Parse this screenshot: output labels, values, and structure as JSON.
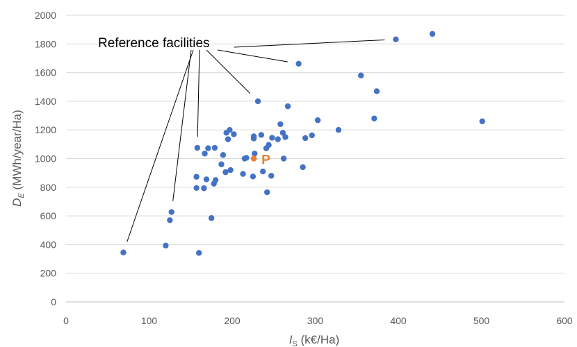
{
  "chart_data": {
    "type": "scatter",
    "title": "",
    "xlabel": {
      "main": "I",
      "sub": "S",
      "rest": " (k€/Ha)"
    },
    "ylabel": {
      "main": "D",
      "sub": "E",
      "rest": " (MWh/year/Ha)"
    },
    "xlim": [
      0,
      600
    ],
    "ylim": [
      0,
      2000
    ],
    "xticks": [
      0,
      100,
      200,
      300,
      400,
      500,
      600
    ],
    "yticks": [
      0,
      200,
      400,
      600,
      800,
      1000,
      1200,
      1400,
      1600,
      1800,
      2000
    ],
    "grid": {
      "horizontal": true,
      "vertical": false
    },
    "colors": {
      "series": "#4472C4",
      "highlight": "#ED7D31",
      "grid": "#D9D9D9",
      "text": "#595959"
    },
    "series": [
      {
        "points": [
          [
            69,
            345
          ],
          [
            120,
            393
          ],
          [
            125,
            570
          ],
          [
            127,
            627
          ],
          [
            157,
            795
          ],
          [
            157,
            873
          ],
          [
            158,
            1075
          ],
          [
            160,
            342
          ],
          [
            166,
            793
          ],
          [
            167,
            1035
          ],
          [
            169,
            855
          ],
          [
            171,
            1072
          ],
          [
            175,
            585
          ],
          [
            178,
            825
          ],
          [
            179,
            1075
          ],
          [
            180,
            850
          ],
          [
            187,
            960
          ],
          [
            189,
            1025
          ],
          [
            192,
            905
          ],
          [
            193,
            1180
          ],
          [
            195,
            1135
          ],
          [
            197,
            1200
          ],
          [
            198,
            920
          ],
          [
            202,
            1170
          ],
          [
            213,
            893
          ],
          [
            215,
            1000
          ],
          [
            217,
            1005
          ],
          [
            225,
            875
          ],
          [
            226,
            1140
          ],
          [
            226,
            1155
          ],
          [
            227,
            1035
          ],
          [
            231,
            1400
          ],
          [
            235,
            1165
          ],
          [
            237,
            910
          ],
          [
            241,
            1072
          ],
          [
            242,
            765
          ],
          [
            244,
            1095
          ],
          [
            247,
            880
          ],
          [
            248,
            1145
          ],
          [
            255,
            1135
          ],
          [
            258,
            1240
          ],
          [
            261,
            1180
          ],
          [
            262,
            1000
          ],
          [
            264,
            1150
          ],
          [
            267,
            1365
          ],
          [
            280,
            1662
          ],
          [
            285,
            940
          ],
          [
            288,
            1143
          ],
          [
            296,
            1162
          ],
          [
            303,
            1268
          ],
          [
            328,
            1200
          ],
          [
            355,
            1580
          ],
          [
            371,
            1280
          ],
          [
            374,
            1470
          ],
          [
            397,
            1832
          ],
          [
            441,
            1870
          ],
          [
            501,
            1260
          ]
        ]
      }
    ],
    "highlight_point": {
      "label": "P",
      "x": 226,
      "y": 1000
    },
    "annotation": {
      "text": "Reference facilities",
      "targets": [
        [
          69,
          345
        ],
        [
          127,
          627
        ],
        [
          158,
          1075
        ],
        [
          231,
          1400
        ],
        [
          280,
          1662
        ],
        [
          397,
          1832
        ]
      ]
    }
  }
}
